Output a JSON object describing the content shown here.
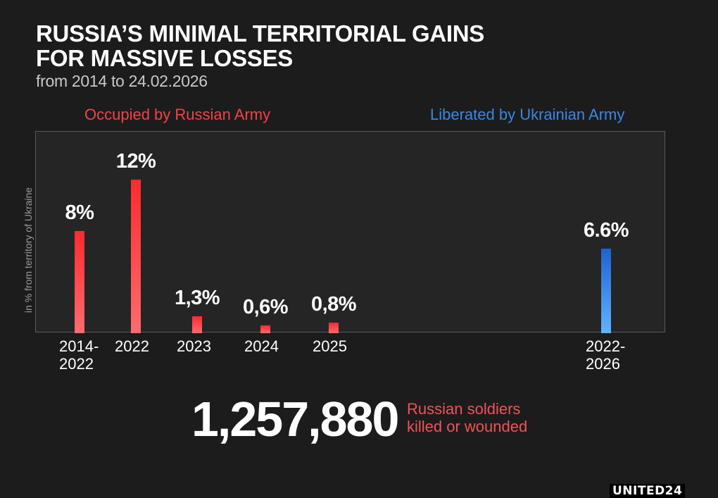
{
  "header": {
    "title_line1": "RUSSIA’S MINIMAL TERRITORIAL GAINS",
    "title_line2": "FOR MASSIVE LOSSES",
    "subtitle": "from 2014 to 24.02.2026"
  },
  "legend": {
    "occupied": "Occupied by Russian Army",
    "liberated": "Liberated by Ukrainian Army"
  },
  "axis": {
    "ylabel": "in % from territory of Ukraine"
  },
  "bars": [
    {
      "category": "2014-\n2022",
      "label": "8%",
      "value": 8,
      "group": "occupied"
    },
    {
      "category": "2022",
      "label": "12%",
      "value": 12,
      "group": "occupied"
    },
    {
      "category": "2023",
      "label": "1,3%",
      "value": 1.3,
      "group": "occupied"
    },
    {
      "category": "2024",
      "label": "0,6%",
      "value": 0.6,
      "group": "occupied"
    },
    {
      "category": "2025",
      "label": "0,8%",
      "value": 0.8,
      "group": "occupied"
    },
    {
      "category": "2022-\n2026",
      "label": "6.6%",
      "value": 6.6,
      "group": "liberated"
    }
  ],
  "losses": {
    "number": "1,257,880",
    "caption_line1": "Russian soldiers",
    "caption_line2": "killed or wounded"
  },
  "brand": {
    "logo_text": "UNITED24"
  },
  "colors": {
    "occupied": "#ff2a2e",
    "liberated": "#1e63d0",
    "background": "#1c1c1c",
    "plot_background": "#252525"
  },
  "chart_data": {
    "type": "bar",
    "title": "RUSSIA’S MINIMAL TERRITORIAL GAINS FOR MASSIVE LOSSES",
    "subtitle": "from 2014 to 24.02.2026",
    "categories": [
      "2014-2022",
      "2022",
      "2023",
      "2024",
      "2025",
      "2022-2026"
    ],
    "series": [
      {
        "name": "Occupied by Russian Army",
        "color": "#ff2a2e",
        "values": [
          8,
          12,
          1.3,
          0.6,
          0.8,
          null
        ]
      },
      {
        "name": "Liberated by Ukrainian Army",
        "color": "#1e63d0",
        "values": [
          null,
          null,
          null,
          null,
          null,
          6.6
        ]
      }
    ],
    "data_labels": [
      "8%",
      "12%",
      "1,3%",
      "0,6%",
      "0,8%",
      "6.6%"
    ],
    "xlabel": "",
    "ylabel": "in % from territory of Ukraine",
    "ylim": [
      0,
      13
    ],
    "grid": false,
    "legend_position": "top",
    "annotations": [
      "1,257,880 Russian soldiers killed or wounded"
    ]
  }
}
